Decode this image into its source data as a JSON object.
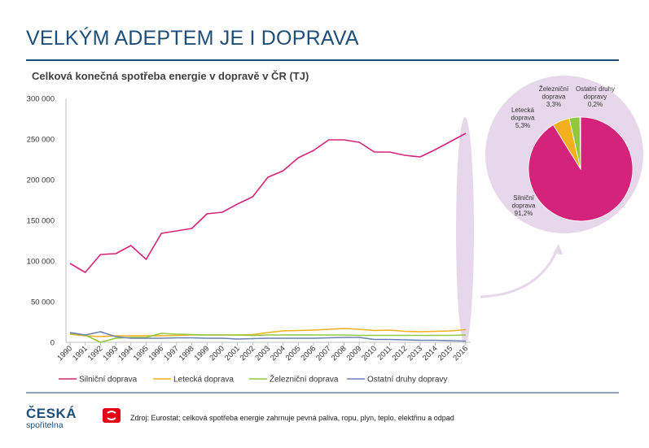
{
  "header": {
    "title": "VELKÝM ADEPTEM JE I DOPRAVA"
  },
  "chart_title": "Celková konečná spotřeba energie v dopravě v ČR (TJ)",
  "footer": {
    "source": "Zdroj: Eurostat; celková spotřeba energie zahrnuje pevná paliva, ropu, plyn, teplo, elektřinu a odpad",
    "logo_name": "ČESKÁ",
    "logo_sub": "spořitelna"
  },
  "chart_data": [
    {
      "type": "line",
      "title": "Celková konečná spotřeba energie v dopravě v ČR (TJ)",
      "x": [
        "1990",
        "1991",
        "1992",
        "1993",
        "1994",
        "1995",
        "1996",
        "1997",
        "1998",
        "1999",
        "2000",
        "2001",
        "2002",
        "2003",
        "2004",
        "2005",
        "2006",
        "2007",
        "2008",
        "2009",
        "2010",
        "2011",
        "2012",
        "2013",
        "2014",
        "2015",
        "2016"
      ],
      "ylim": [
        0,
        300000
      ],
      "yticks": [
        0,
        50000,
        100000,
        150000,
        200000,
        250000,
        300000
      ],
      "ytick_labels": [
        "0",
        "50 000",
        "100 000",
        "150 000",
        "200 000",
        "250 000",
        "300 000"
      ],
      "grid": false,
      "legend": "bottom",
      "series": [
        {
          "name": "Silniční doprava",
          "color": "#d4237a",
          "values": [
            97000,
            86000,
            108000,
            109000,
            119000,
            102000,
            134000,
            137000,
            140000,
            158000,
            160000,
            170000,
            179000,
            203000,
            211000,
            227000,
            236000,
            249000,
            249000,
            246000,
            234000,
            234000,
            230000,
            228000,
            237000,
            247000,
            257000
          ]
        },
        {
          "name": "Letecká doprava",
          "color": "#f2b01e",
          "values": [
            10000,
            8000,
            7000,
            8000,
            8000,
            8000,
            8000,
            8500,
            9000,
            9000,
            9000,
            9000,
            9500,
            12000,
            14000,
            14500,
            15000,
            16000,
            17000,
            16000,
            14500,
            15000,
            13500,
            13000,
            13500,
            14000,
            15500
          ]
        },
        {
          "name": "Železniční doprava",
          "color": "#92c83e",
          "values": [
            11000,
            9000,
            0,
            5000,
            6000,
            6000,
            11000,
            10000,
            9500,
            9000,
            9000,
            9000,
            8500,
            9000,
            9000,
            9000,
            9000,
            9000,
            9000,
            8500,
            8500,
            8500,
            8500,
            8500,
            8500,
            8500,
            9000
          ]
        },
        {
          "name": "Ostatní druhy dopravy",
          "color": "#6b82b0",
          "values": [
            12000,
            9000,
            13000,
            7000,
            5000,
            5000,
            5000,
            5500,
            5500,
            5000,
            5000,
            4000,
            4500,
            5000,
            5000,
            5000,
            5000,
            5500,
            6000,
            6000,
            3500,
            3500,
            3000,
            2500,
            2500,
            2000,
            1500
          ]
        }
      ]
    },
    {
      "type": "pie",
      "year": "2016",
      "slices": [
        {
          "label": "Silniční doprava",
          "value": 91.2,
          "value_label": "91,2%",
          "color": "#d4237a"
        },
        {
          "label": "Letecká doprava",
          "value": 5.3,
          "value_label": "5,3%",
          "color": "#f2b01e"
        },
        {
          "label": "Železniční doprava",
          "value": 3.3,
          "value_label": "3,3%",
          "color": "#92c83e"
        },
        {
          "label": "Ostatní druhy dopravy",
          "value": 0.2,
          "value_label": "0,2%",
          "color": "#6b82b0"
        }
      ]
    }
  ]
}
